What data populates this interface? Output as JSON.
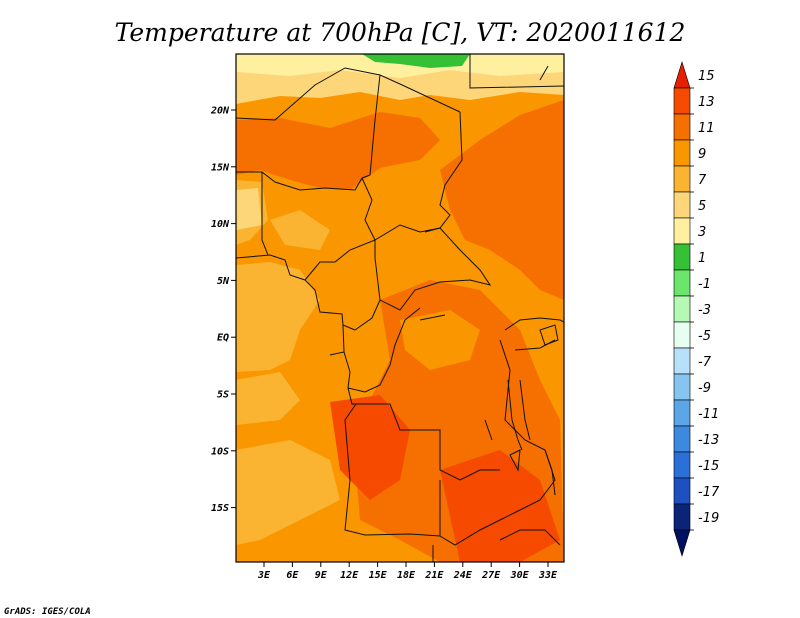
{
  "title": "Temperature at 700hPa [C], VT: 2020011612",
  "credit": "GrADS: IGES/COLA",
  "map": {
    "region": "Central Africa",
    "variable": "Temperature at 700hPa",
    "units": "C",
    "valid_time": "2020011612",
    "longitude_labels": [
      "3E",
      "6E",
      "9E",
      "12E",
      "15E",
      "18E",
      "21E",
      "24E",
      "27E",
      "30E",
      "33E"
    ],
    "latitude_labels": [
      "20N",
      "15N",
      "10N",
      "5N",
      "EQ",
      "5S",
      "10S",
      "15S"
    ]
  },
  "colorbar": {
    "labels": [
      "15",
      "13",
      "11",
      "9",
      "7",
      "5",
      "3",
      "1",
      "-1",
      "-3",
      "-5",
      "-7",
      "-9",
      "-11",
      "-13",
      "-15",
      "-17",
      "-19"
    ],
    "colors": [
      "#e81e00",
      "#f54a00",
      "#f57000",
      "#fa9600",
      "#fab432",
      "#fdd67a",
      "#fff0a0",
      "#36c036",
      "#6be56b",
      "#b4f9b4",
      "#e6fff0",
      "#b9e0fa",
      "#87c4f0",
      "#5aa6e6",
      "#3c8ae0",
      "#2a70d6",
      "#1e50c0",
      "#0a2478",
      "#001060"
    ]
  }
}
